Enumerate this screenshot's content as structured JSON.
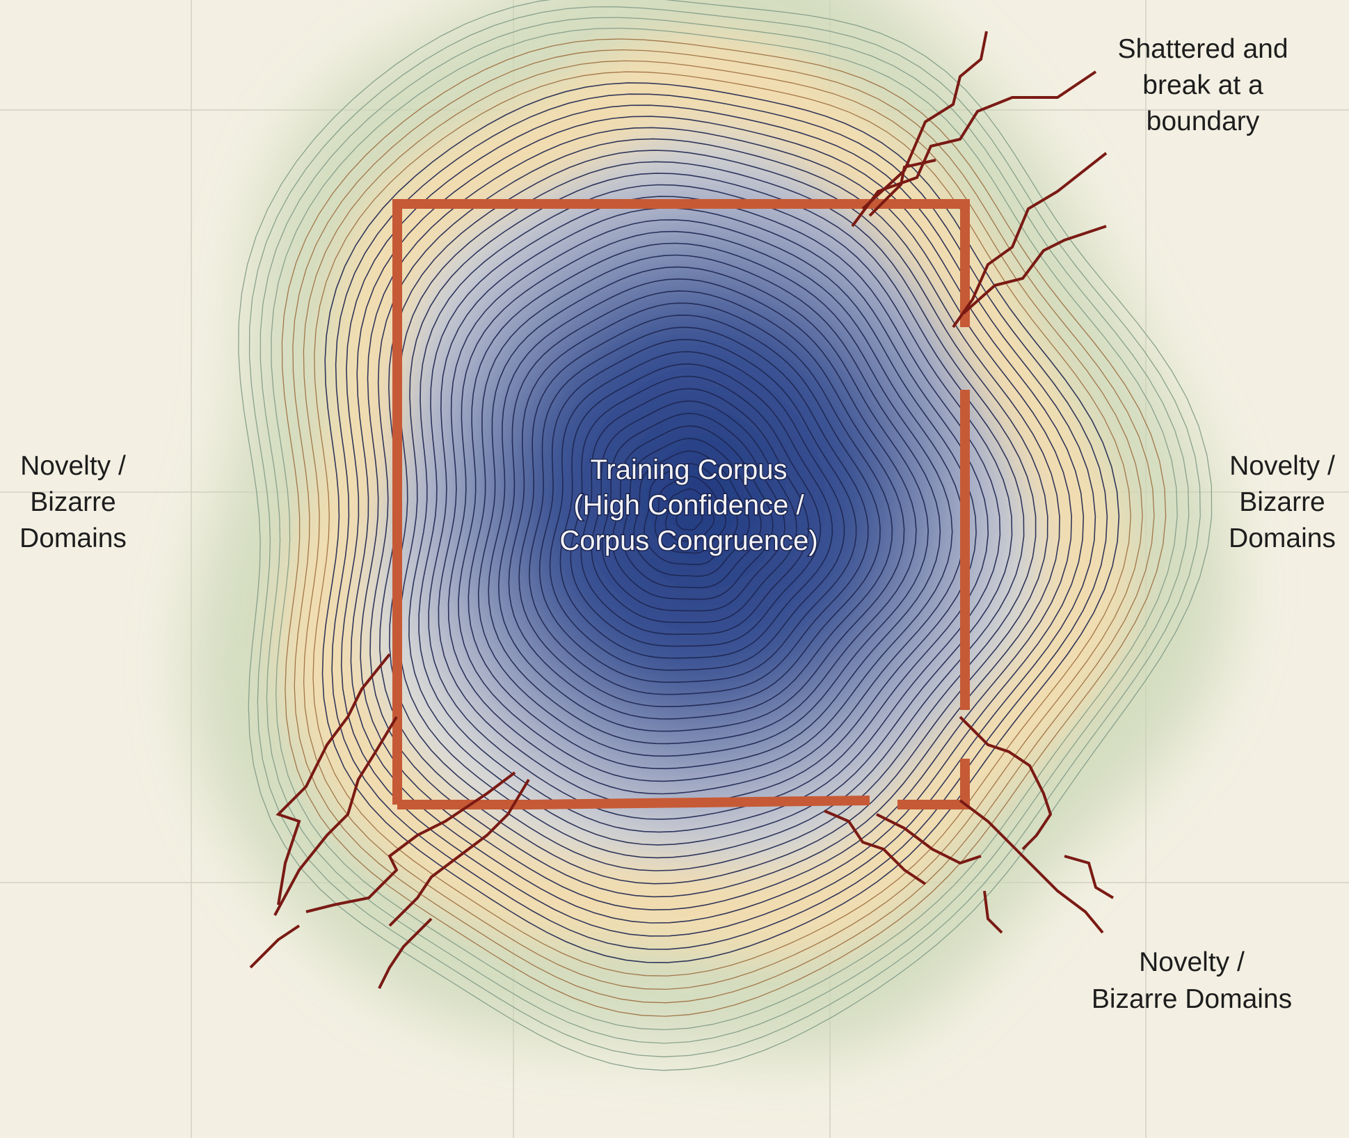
{
  "labels": {
    "top_right": [
      "Shattered and",
      "break at a",
      "boundary"
    ],
    "left": [
      "Novelty /",
      "Bizarre",
      "Domains"
    ],
    "right": [
      "Novelty /",
      "Bizarre",
      "Domains"
    ],
    "bottom_right": [
      "Novelty /",
      "Bizarre Domains"
    ],
    "center": [
      "Training Corpus",
      "(High Confidence /",
      "Corpus Congruence)"
    ]
  }
}
